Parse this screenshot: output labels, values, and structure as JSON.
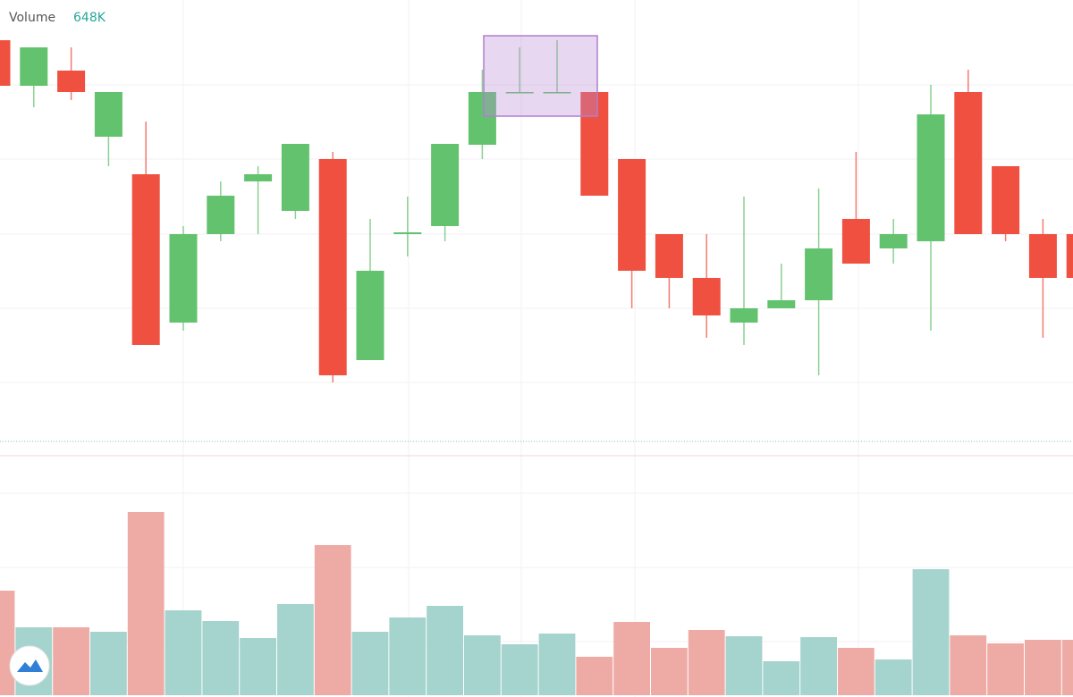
{
  "chart_data": {
    "type": "candlestick",
    "legend_title": "Volume",
    "legend_value": "648K",
    "up_color": "#63c26d",
    "down_color": "#ef5040",
    "volume_up_color": "#a5d3cd",
    "volume_down_color": "#eeaba6",
    "open": [
      455,
      404,
      421,
      347,
      305,
      139,
      238,
      297,
      264,
      322,
      97,
      238,
      247,
      338,
      397,
      397,
      397,
      322,
      238,
      189,
      139,
      155,
      164,
      255,
      222,
      230,
      397,
      314,
      238,
      238
    ],
    "high": [
      455,
      447,
      447,
      397,
      364,
      247,
      297,
      314,
      339,
      330,
      255,
      280,
      339,
      422,
      447,
      455,
      397,
      322,
      238,
      238,
      280,
      205,
      289,
      330,
      255,
      405,
      422,
      314,
      255,
      238
    ],
    "low": [
      404,
      380,
      388,
      314,
      114,
      130,
      230,
      238,
      255,
      72,
      97,
      213,
      230,
      322,
      397,
      397,
      281,
      155,
      155,
      122,
      114,
      155,
      80,
      205,
      205,
      130,
      238,
      230,
      122,
      189
    ],
    "close": [
      404,
      447,
      397,
      397,
      114,
      238,
      281,
      305,
      339,
      80,
      197,
      240,
      339,
      397,
      397,
      397,
      281,
      197,
      189,
      147,
      155,
      164,
      222,
      205,
      238,
      372,
      238,
      238,
      189,
      189
    ],
    "ylim": [
      0,
      500
    ],
    "volume": [
      117,
      76,
      76,
      71,
      205,
      95,
      83,
      64,
      102,
      168,
      71,
      87,
      100,
      67,
      57,
      69,
      43,
      82,
      53,
      73,
      66,
      38,
      65,
      53,
      40,
      141,
      67,
      58,
      62,
      62
    ],
    "volume_ylim": [
      0,
      258
    ]
  }
}
